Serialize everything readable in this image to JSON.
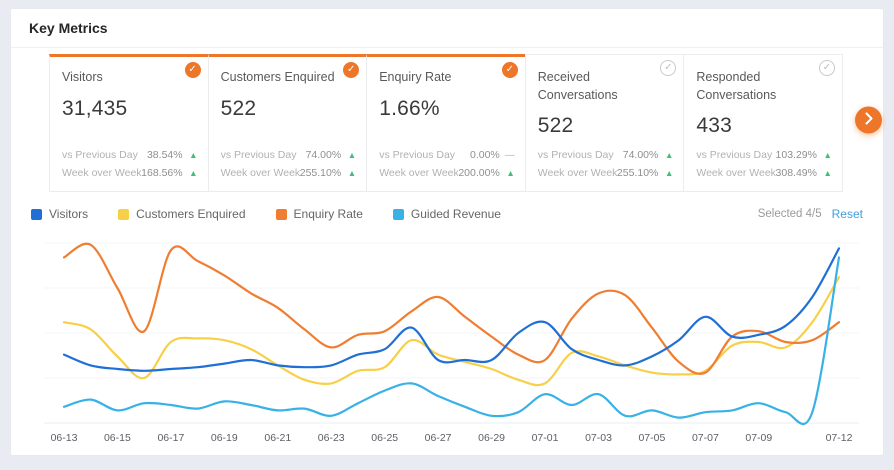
{
  "header": {
    "title": "Key Metrics"
  },
  "colors": {
    "accent": "#ed7628",
    "positive": "#3fbe7c",
    "link": "#419fdb"
  },
  "icons": {
    "selected_badge": "check-circle",
    "unselected_badge": "check-circle-outline",
    "trend_up": "▲",
    "trend_flat": "—",
    "carousel_next": "chevron-right"
  },
  "cards": [
    {
      "title": "Visitors",
      "value": "31,435",
      "selected": true,
      "rows": [
        {
          "label": "vs Previous Day",
          "value": "38.54%",
          "trend": "up"
        },
        {
          "label": "Week over Week",
          "value": "168.56%",
          "trend": "up"
        }
      ]
    },
    {
      "title": "Customers Enquired",
      "value": "522",
      "selected": true,
      "rows": [
        {
          "label": "vs Previous Day",
          "value": "74.00%",
          "trend": "up"
        },
        {
          "label": "Week over Week",
          "value": "255.10%",
          "trend": "up"
        }
      ]
    },
    {
      "title": "Enquiry Rate",
      "value": "1.66%",
      "selected": true,
      "rows": [
        {
          "label": "vs Previous Day",
          "value": "0.00%",
          "trend": "flat"
        },
        {
          "label": "Week over Week",
          "value": "200.00%",
          "trend": "up"
        }
      ]
    },
    {
      "title": "Received Conversations",
      "value": "522",
      "selected": false,
      "rows": [
        {
          "label": "vs Previous Day",
          "value": "74.00%",
          "trend": "up"
        },
        {
          "label": "Week over Week",
          "value": "255.10%",
          "trend": "up"
        }
      ]
    },
    {
      "title": "Responded Conversations",
      "value": "433",
      "selected": false,
      "rows": [
        {
          "label": "vs Previous Day",
          "value": "103.29%",
          "trend": "up"
        },
        {
          "label": "Week over Week",
          "value": "308.49%",
          "trend": "up"
        }
      ]
    }
  ],
  "legend": {
    "items": [
      {
        "label": "Visitors",
        "color": "#1f6fd6"
      },
      {
        "label": "Customers Enquired",
        "color": "#f7d048"
      },
      {
        "label": "Enquiry Rate",
        "color": "#ef7e32"
      },
      {
        "label": "Guided Revenue",
        "color": "#38b1e6"
      }
    ],
    "selected_text": "Selected 4/5",
    "reset_label": "Reset"
  },
  "chart_data": {
    "type": "line",
    "x": [
      "06-13",
      "06-14",
      "06-15",
      "06-16",
      "06-17",
      "06-18",
      "06-19",
      "06-20",
      "06-21",
      "06-22",
      "06-23",
      "06-24",
      "06-25",
      "06-26",
      "06-27",
      "06-28",
      "06-29",
      "06-30",
      "07-01",
      "07-02",
      "07-03",
      "07-04",
      "07-05",
      "07-06",
      "07-07",
      "07-08",
      "07-09",
      "07-10",
      "07-11",
      "07-12"
    ],
    "x_tick_indices": [
      0,
      2,
      4,
      6,
      8,
      10,
      12,
      14,
      16,
      18,
      20,
      22,
      24,
      26,
      29
    ],
    "series": [
      {
        "name": "Visitors",
        "color": "#1f6fd6",
        "values": [
          38,
          32,
          30,
          29,
          30,
          31,
          33,
          35,
          32,
          31,
          32,
          38,
          41,
          53,
          35,
          35,
          35,
          50,
          56,
          41,
          35,
          32,
          37,
          46,
          59,
          48,
          49,
          54,
          70,
          97
        ]
      },
      {
        "name": "Customers Enquired",
        "color": "#f7d048",
        "values": [
          56,
          52,
          37,
          25,
          45,
          47,
          46,
          41,
          32,
          24,
          22,
          29,
          31,
          46,
          38,
          34,
          30,
          24,
          22,
          39,
          37,
          32,
          28,
          27,
          29,
          43,
          45,
          42,
          56,
          81
        ]
      },
      {
        "name": "Enquiry Rate",
        "color": "#ef7e32",
        "values": [
          92,
          99,
          75,
          51,
          96,
          90,
          82,
          72,
          64,
          52,
          42,
          49,
          51,
          62,
          70,
          59,
          48,
          38,
          35,
          58,
          72,
          71,
          53,
          34,
          28,
          48,
          51,
          45,
          46,
          56
        ]
      },
      {
        "name": "Guided Revenue",
        "color": "#38b1e6",
        "values": [
          9,
          13,
          7,
          11,
          10,
          8,
          12,
          10,
          7,
          8,
          4,
          11,
          18,
          22,
          15,
          9,
          4,
          6,
          16,
          10,
          16,
          4,
          7,
          3,
          6,
          7,
          11,
          6,
          6,
          92
        ]
      }
    ],
    "ylim": [
      0,
      100
    ],
    "y_scale_note": "relative heights 0-100; no y-axis labels shown in chart",
    "grid": "horizontal",
    "legend_position": "top-left",
    "title": "",
    "xlabel": "",
    "ylabel": ""
  }
}
